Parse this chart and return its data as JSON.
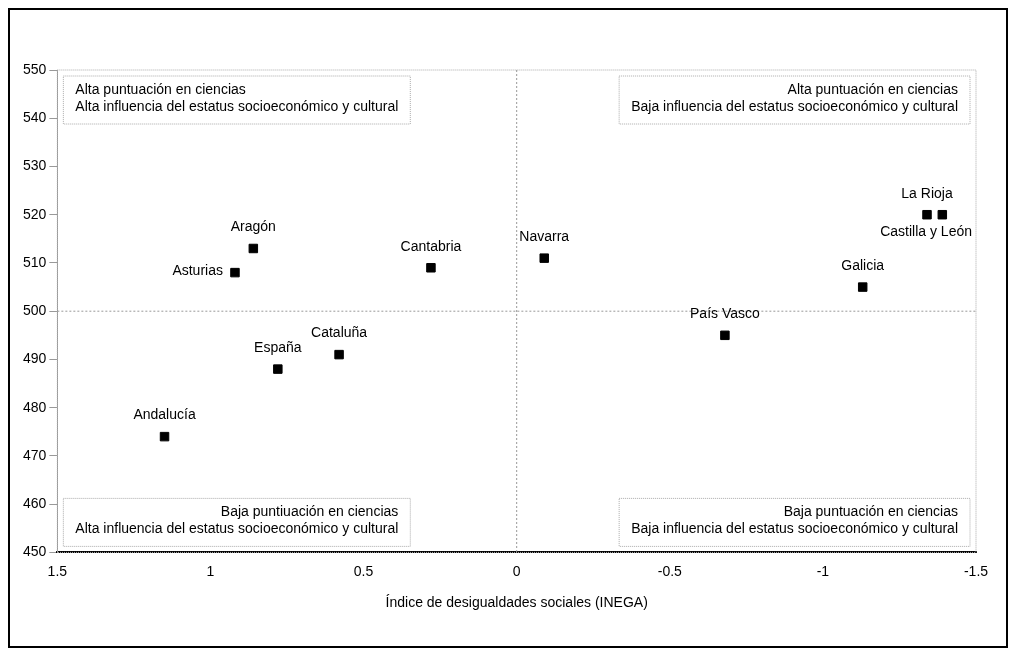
{
  "chart_data": {
    "type": "scatter",
    "xlabel": "Índice de desigualdades sociales (INEGA)",
    "x": [
      0.86,
      0.92,
      0.28,
      0.58,
      0.78,
      1.15,
      -0.09,
      -1.34,
      -1.39,
      -1.13,
      -0.68
    ],
    "values": [
      513,
      508,
      509,
      491,
      488,
      474,
      511,
      520,
      520,
      505,
      495
    ],
    "color": "#000000",
    "marker": "square",
    "xlim": [
      1.5,
      -1.5
    ],
    "xticks": [
      1.5,
      1,
      0.5,
      0,
      -0.5,
      -1,
      -1.5
    ],
    "ylim": [
      450,
      550
    ],
    "yticks": [
      450,
      460,
      470,
      480,
      490,
      500,
      510,
      520,
      530,
      540,
      550
    ],
    "grid": false,
    "legend": false,
    "ref_lines": [
      {
        "axis": "x",
        "value": 0,
        "color": "#999999",
        "line_style": "dotted"
      },
      {
        "axis": "y",
        "value": 500,
        "color": "#999999",
        "line_style": "dotted"
      }
    ],
    "annotations": [
      {
        "text": "Aragón",
        "x": 0.86,
        "y": 513
      },
      {
        "text": "Asturias",
        "x": 0.92,
        "y": 508
      },
      {
        "text": "Cantabria",
        "x": 0.28,
        "y": 509
      },
      {
        "text": "Cataluña",
        "x": 0.58,
        "y": 491
      },
      {
        "text": "España",
        "x": 0.78,
        "y": 488
      },
      {
        "text": "Andalucía",
        "x": 1.15,
        "y": 474
      },
      {
        "text": "Navarra",
        "x": -0.09,
        "y": 511
      },
      {
        "text": "La Rioja",
        "x": -1.34,
        "y": 520
      },
      {
        "text": "Castilla y León",
        "x": -1.39,
        "y": 520
      },
      {
        "text": "Galicia",
        "x": -1.13,
        "y": 505
      },
      {
        "text": "País Vasco",
        "x": -0.68,
        "y": 495
      },
      "Alta puntuación en ciencias\nAlta influencia del estatus socioeconómico y cultural",
      "Alta puntuación en ciencias\nBaja influencia del estatus socioeconómico y cultural",
      "Baja puntiuación en ciencias\nAlta influencia del estatus socioeconómico y cultural",
      "Baja puntuación en ciencias\nBaja influencia del estatus socioeconómico y cultural"
    ]
  }
}
